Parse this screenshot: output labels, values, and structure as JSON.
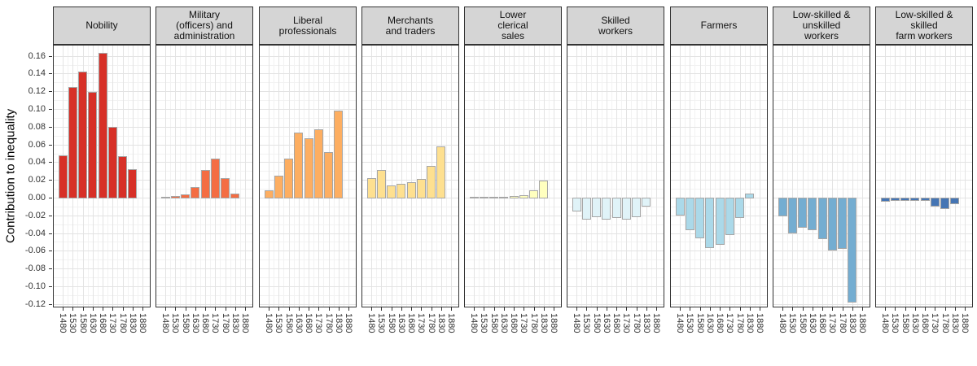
{
  "chart_data": {
    "type": "bar",
    "title": "",
    "ylabel": "Contribution to inequality",
    "xlabel": "",
    "ylim": [
      -0.1239,
      0.1725
    ],
    "grid": true,
    "legend_position": "none",
    "facets": true,
    "x": [
      1480,
      1530,
      1580,
      1630,
      1680,
      1730,
      1780,
      1830
    ],
    "x_axis_tick_labels": [
      "1480",
      "1530",
      "1580",
      "1630",
      "1680",
      "1730",
      "1780",
      "1830",
      "1880"
    ],
    "y_axis_tick_labels": [
      "0.16",
      "0.14",
      "0.12",
      "0.10",
      "0.08",
      "0.06",
      "0.04",
      "0.02",
      "0.00",
      "-0.02",
      "-0.04",
      "-0.06",
      "-0.08",
      "-0.10",
      "-0.12"
    ],
    "y_axis_tick_values": [
      0.16,
      0.14,
      0.12,
      0.1,
      0.08,
      0.06,
      0.04,
      0.02,
      0.0,
      -0.02,
      -0.04,
      -0.06,
      -0.08,
      -0.1,
      -0.12
    ],
    "note": "No bars at 1880 in any facet",
    "series": [
      {
        "name": "Nobility",
        "label_lines": [
          "Nobility"
        ],
        "color": "#d73027",
        "values": [
          0.048,
          0.125,
          0.142,
          0.119,
          0.163,
          0.08,
          0.047,
          0.032
        ]
      },
      {
        "name": "Military (officers) and administration",
        "label_lines": [
          "Military",
          "(officers) and",
          "administration"
        ],
        "color": "#f46d43",
        "values": [
          0.001,
          0.002,
          0.004,
          0.012,
          0.031,
          0.044,
          0.022,
          0.005
        ]
      },
      {
        "name": "Liberal professionals",
        "label_lines": [
          "Liberal",
          "professionals"
        ],
        "color": "#fdae61",
        "values": [
          0.008,
          0.025,
          0.044,
          0.073,
          0.067,
          0.077,
          0.051,
          0.098
        ]
      },
      {
        "name": "Merchants and traders",
        "label_lines": [
          "Merchants",
          "and traders"
        ],
        "color": "#fee090",
        "values": [
          0.022,
          0.031,
          0.014,
          0.016,
          0.017,
          0.021,
          0.036,
          0.058
        ]
      },
      {
        "name": "Lower clerical sales",
        "label_lines": [
          "Lower",
          "clerical",
          "sales"
        ],
        "color": "#ffffbf",
        "values": [
          0.001,
          0.001,
          0.001,
          0.001,
          0.002,
          0.003,
          0.008,
          0.019
        ]
      },
      {
        "name": "Skilled workers",
        "label_lines": [
          "Skilled",
          "workers"
        ],
        "color": "#e0f3f8",
        "values": [
          -0.015,
          -0.024,
          -0.021,
          -0.024,
          -0.022,
          -0.024,
          -0.021,
          -0.009
        ]
      },
      {
        "name": "Farmers",
        "label_lines": [
          "Farmers"
        ],
        "color": "#abd9e9",
        "values": [
          -0.019,
          -0.036,
          -0.045,
          -0.056,
          -0.052,
          -0.041,
          -0.022,
          0.005
        ]
      },
      {
        "name": "Low-skilled & unskilled workers",
        "label_lines": [
          "Low-skilled &",
          "unskilled",
          "workers"
        ],
        "color": "#74add1",
        "values": [
          -0.02,
          -0.039,
          -0.033,
          -0.036,
          -0.046,
          -0.059,
          -0.057,
          -0.117
        ]
      },
      {
        "name": "Low-skilled & skilled farm workers",
        "label_lines": [
          "Low-skilled &",
          "skilled",
          "farm workers"
        ],
        "color": "#4575b4",
        "values": [
          -0.004,
          -0.003,
          -0.003,
          -0.003,
          -0.003,
          -0.009,
          -0.012,
          -0.006
        ]
      }
    ]
  }
}
